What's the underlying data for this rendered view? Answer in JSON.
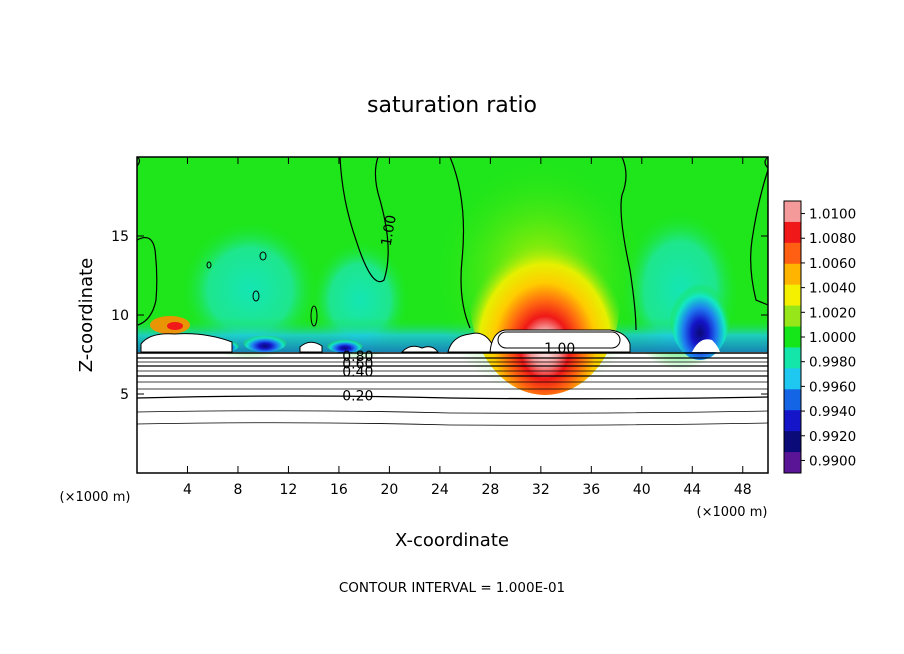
{
  "chart_data": {
    "type": "heatmap",
    "title": "saturation ratio",
    "xlabel": "X-coordinate",
    "ylabel": "Z-coordinate",
    "x_unit_label": "(×1000 m)",
    "y_unit_label": "(×1000 m)",
    "xlim": [
      0,
      50
    ],
    "ylim": [
      0,
      20
    ],
    "x_ticks": [
      4,
      8,
      12,
      16,
      20,
      24,
      28,
      32,
      36,
      40,
      44,
      48
    ],
    "y_ticks": [
      5,
      10,
      15
    ],
    "colorbar": {
      "levels": [
        "1.0100",
        "1.0080",
        "1.0060",
        "1.0040",
        "1.0020",
        "1.0000",
        "0.9980",
        "0.9960",
        "0.9940",
        "0.9920",
        "0.9900"
      ],
      "colors": [
        "#f59a9a",
        "#f01818",
        "#ff5f12",
        "#ffb400",
        "#f4f000",
        "#96e61a",
        "#14e61a",
        "#14e6aa",
        "#1ec8f0",
        "#1464e6",
        "#1414c8",
        "#0a0a78",
        "#5a1496"
      ]
    },
    "contour_labels": [
      {
        "text": "1.00",
        "x": 20.3,
        "z": 15.3
      },
      {
        "text": "1.00",
        "x": 33.5,
        "z": 7.6
      },
      {
        "text": "0.80",
        "x": 17.5,
        "z": 7.1
      },
      {
        "text": "0.60",
        "x": 17.5,
        "z": 6.6
      },
      {
        "text": "0.40",
        "x": 17.5,
        "z": 6.1
      },
      {
        "text": "0.20",
        "x": 17.5,
        "z": 4.6
      }
    ],
    "footer": "CONTOUR INTERVAL = 1.000E-01"
  },
  "colors": {
    "background_green": "#1ee61a",
    "supersat_core": "#f01818",
    "subsat_core": "#1414c8"
  }
}
